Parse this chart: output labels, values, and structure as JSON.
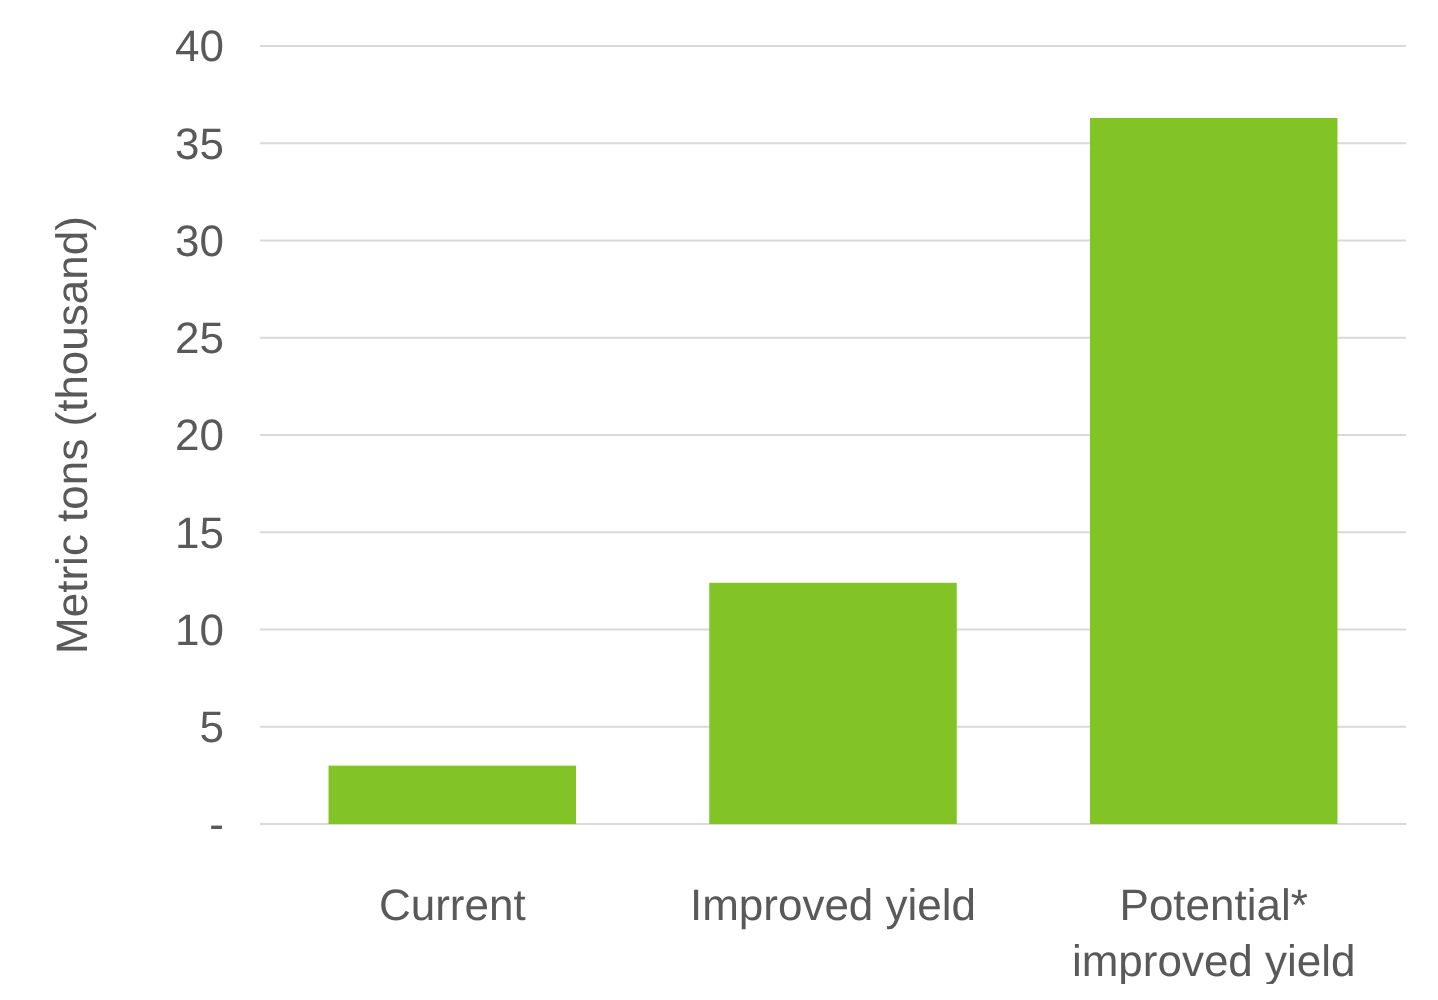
{
  "chart_data": {
    "type": "bar",
    "ylabel": "Metric tons (thousand)",
    "categories": [
      "Current",
      "Improved yield",
      "Potential* improved yield"
    ],
    "values": [
      3.0,
      12.4,
      36.3
    ],
    "color": "#82c326",
    "ylim": [
      0,
      40
    ],
    "yticks": [
      {
        "value": 0,
        "label": "-"
      },
      5,
      10,
      15,
      20,
      25,
      30,
      35,
      40
    ],
    "grid": "y"
  }
}
